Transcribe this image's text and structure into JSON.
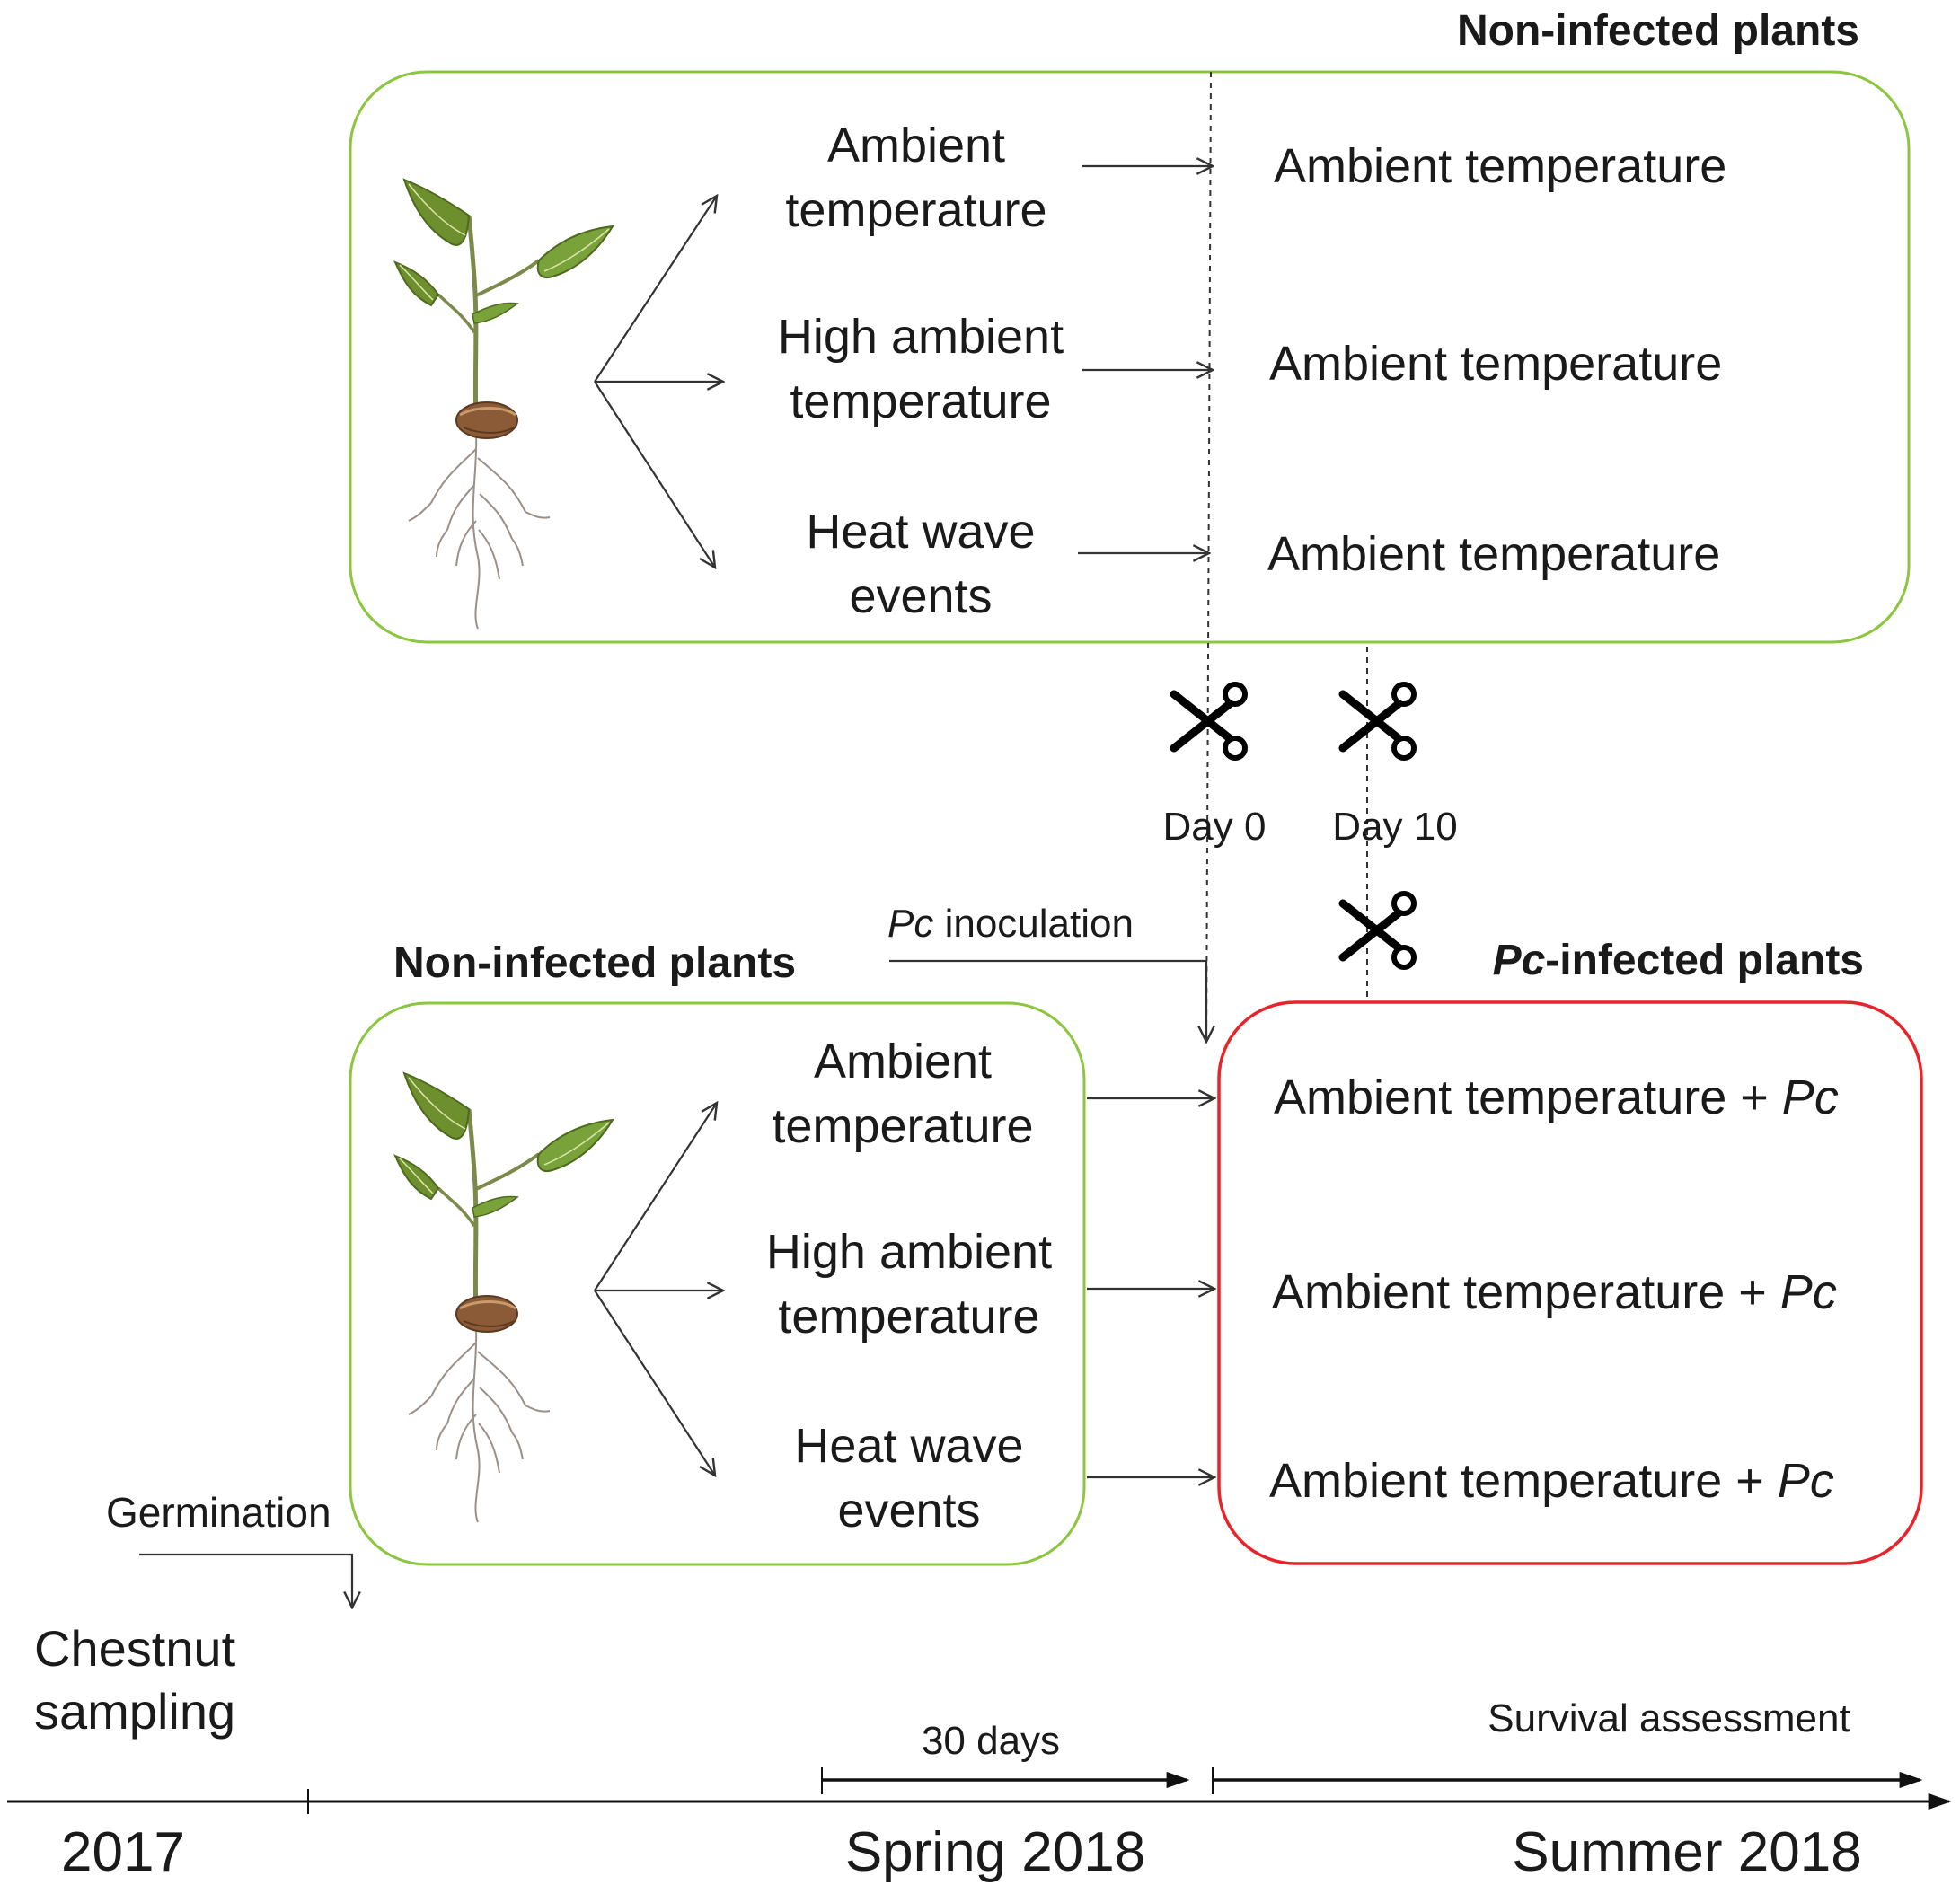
{
  "colors": {
    "box_green": "#8cc63f",
    "box_red": "#e8242b",
    "line": "#333333",
    "leaf_green": "#6e8f2e",
    "seed_brown": "#8b5a36"
  },
  "top_panel": {
    "title": "Non-infected plants",
    "treatments": [
      {
        "line1": "Ambient",
        "line2": "temperature",
        "outcome": "Ambient temperature"
      },
      {
        "line1": "High ambient",
        "line2": "temperature",
        "outcome": "Ambient temperature"
      },
      {
        "line1": "Heat wave",
        "line2": "events",
        "outcome": "Ambient temperature"
      }
    ]
  },
  "bottom_panel": {
    "left_title": "Non-infected plants",
    "right_title_italic": "Pc",
    "right_title_rest": "-infected plants",
    "treatments": [
      {
        "line1": "Ambient",
        "line2": "temperature",
        "outcome": "Ambient temperature + ",
        "outcome_italic": "Pc"
      },
      {
        "line1": "High ambient",
        "line2": "temperature",
        "outcome": "Ambient temperature + ",
        "outcome_italic": "Pc"
      },
      {
        "line1": "Heat wave",
        "line2": "events",
        "outcome": "Ambient temperature + ",
        "outcome_italic": "Pc"
      }
    ]
  },
  "sampling_points": {
    "day0": "Day 0",
    "day10": "Day 10",
    "icon": "scissors-icon"
  },
  "inoculation": {
    "italic": "Pc",
    "rest": " inoculation"
  },
  "germination": "Germination",
  "chestnut_sampling": {
    "line1": "Chestnut",
    "line2": "sampling"
  },
  "timeline": {
    "labels": [
      "2017",
      "Spring 2018",
      "Summer 2018"
    ],
    "duration_label": "30 days",
    "survival_label": "Survival assessment"
  }
}
